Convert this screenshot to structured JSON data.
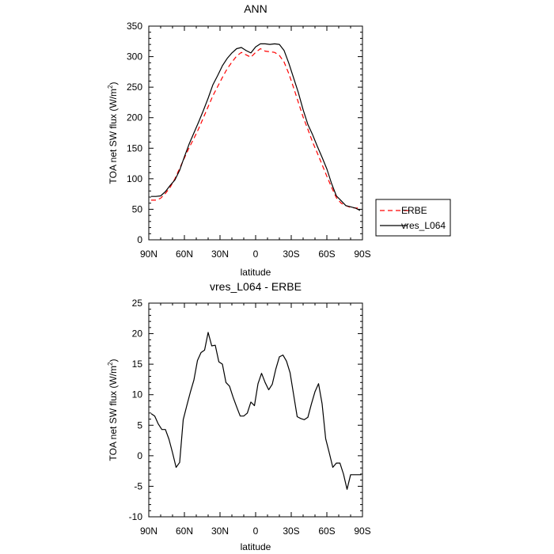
{
  "chart_data": [
    {
      "type": "line",
      "title": "ANN",
      "xlabel": "latitude",
      "ylabel": "TOA net SW flux (W/m",
      "ylabel_sup": "2",
      "ylabel_close": ")",
      "x_tick_labels": [
        "90N",
        "60N",
        "30N",
        "0",
        "30S",
        "60S",
        "90S"
      ],
      "y_tick_labels": [
        "0",
        "50",
        "100",
        "150",
        "200",
        "250",
        "300",
        "350"
      ],
      "x_range": [
        90,
        -90
      ],
      "ylim": [
        0,
        350
      ],
      "legend": {
        "position": "right",
        "entries": [
          "ERBE",
          "vres_L064"
        ]
      },
      "series": [
        {
          "name": "ERBE",
          "color": "#ff0000",
          "dash": true,
          "lat": [
            88,
            84,
            80,
            76,
            72,
            68,
            64,
            60,
            56,
            52,
            48,
            44,
            40,
            36,
            32,
            28,
            24,
            20,
            16,
            12,
            8,
            4,
            0,
            -4,
            -8,
            -12,
            -16,
            -20,
            -24,
            -28,
            -32,
            -36,
            -40,
            -44,
            -48,
            -52,
            -56,
            -60,
            -64,
            -68,
            -72,
            -76,
            -80,
            -84,
            -88
          ],
          "values": [
            65,
            65,
            68,
            76,
            86,
            100,
            117,
            134,
            151,
            166,
            182,
            200,
            218,
            236,
            251,
            266,
            280,
            291,
            301,
            307,
            303,
            299,
            307,
            313,
            309,
            308,
            307,
            302,
            291,
            272,
            249,
            225,
            201,
            181,
            160,
            142,
            123,
            104,
            86,
            69,
            60,
            56,
            53,
            52,
            52
          ]
        },
        {
          "name": "vres_L064",
          "color": "#000000",
          "dash": false,
          "lat": [
            88,
            84,
            80,
            76,
            72,
            68,
            64,
            60,
            56,
            52,
            48,
            44,
            40,
            36,
            32,
            28,
            24,
            20,
            16,
            12,
            8,
            4,
            0,
            -4,
            -8,
            -12,
            -16,
            -20,
            -24,
            -28,
            -32,
            -36,
            -40,
            -44,
            -48,
            -52,
            -56,
            -60,
            -64,
            -68,
            -72,
            -76,
            -80,
            -84,
            -88
          ],
          "values": [
            71,
            71,
            72,
            79,
            89,
            98,
            114,
            136,
            157,
            175,
            193,
            212,
            232,
            254,
            269,
            285,
            297,
            306,
            313,
            315,
            310,
            306,
            316,
            321,
            321,
            320,
            321,
            320,
            310,
            289,
            265,
            241,
            213,
            189,
            172,
            153,
            135,
            116,
            92,
            72,
            64,
            56,
            54,
            52,
            48
          ]
        }
      ]
    },
    {
      "type": "line",
      "title": "vres_L064 - ERBE",
      "xlabel": "latitude",
      "ylabel": "TOA net SW flux (W/m",
      "ylabel_sup": "2",
      "ylabel_close": ")",
      "x_tick_labels": [
        "90N",
        "60N",
        "30N",
        "0",
        "30S",
        "60S",
        "90S"
      ],
      "y_tick_labels": [
        "-10",
        "-5",
        "0",
        "5",
        "10",
        "15",
        "20",
        "25"
      ],
      "x_range": [
        90,
        -90
      ],
      "ylim": [
        -10,
        25
      ],
      "series": [
        {
          "name": "vres_L064 - ERBE",
          "color": "#000000",
          "dash": false,
          "lat": [
            88,
            85,
            82,
            79,
            76,
            73,
            70,
            67,
            64,
            61,
            58,
            55,
            52,
            49,
            46,
            43,
            40,
            37,
            34,
            31,
            28,
            25,
            22,
            19,
            16,
            13,
            10,
            7,
            4,
            1,
            -2,
            -5,
            -8,
            -11,
            -14,
            -17,
            -20,
            -23,
            -26,
            -29,
            -32,
            -35,
            -38,
            -41,
            -44,
            -47,
            -50,
            -53,
            -56,
            -59,
            -62,
            -65,
            -68,
            -71,
            -74,
            -77,
            -80,
            -83,
            -86,
            -89
          ],
          "values": [
            6.9,
            6.5,
            5.2,
            4.3,
            4.3,
            2.7,
            0.5,
            -1.9,
            -1.1,
            5.9,
            8.2,
            10.4,
            12.4,
            15.6,
            16.9,
            17.3,
            20.2,
            18.0,
            18.1,
            15.4,
            15.0,
            12.0,
            11.4,
            9.6,
            8.0,
            6.5,
            6.5,
            7.0,
            8.8,
            8.2,
            11.8,
            13.5,
            12.0,
            10.8,
            11.7,
            14.2,
            16.2,
            16.5,
            15.5,
            13.6,
            10.0,
            6.4,
            6.1,
            5.9,
            6.3,
            8.5,
            10.5,
            11.8,
            8.5,
            2.8,
            0.5,
            -1.9,
            -1.2,
            -1.2,
            -3.0,
            -5.5,
            -3.1,
            -3.1,
            -3.1,
            -3.1
          ]
        }
      ]
    }
  ]
}
